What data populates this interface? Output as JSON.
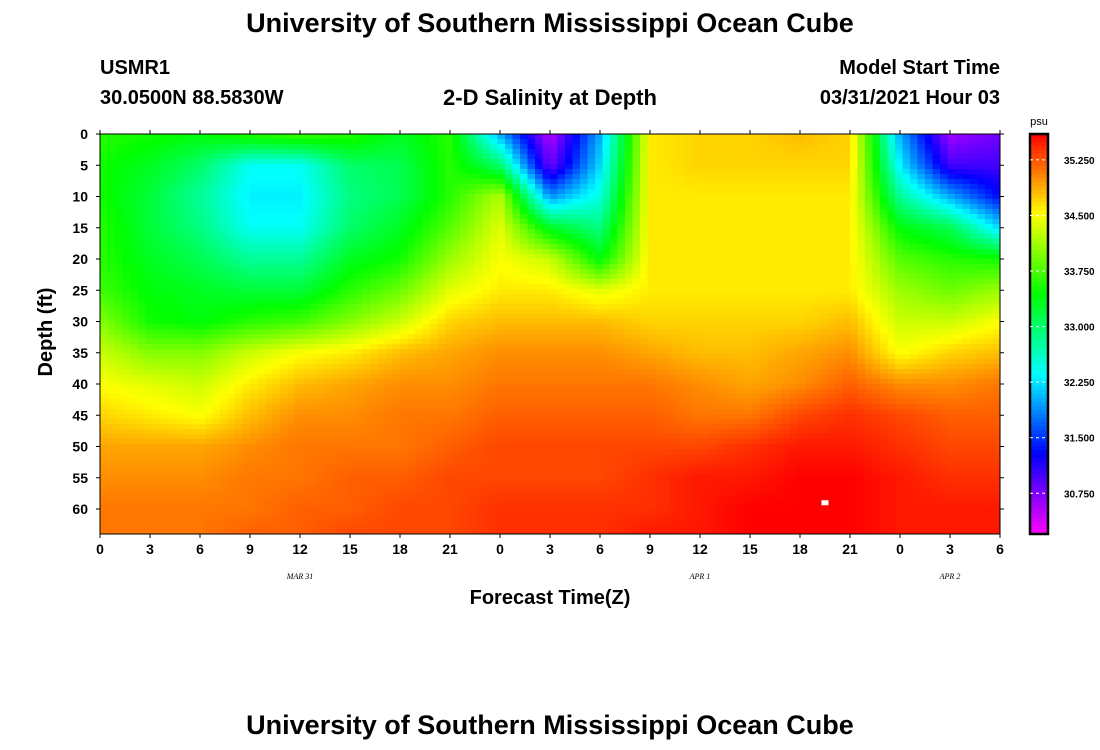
{
  "header": {
    "title_top": "University of Southern Mississippi Ocean Cube",
    "title_bottom": "University of Southern Mississippi Ocean Cube",
    "station_id": "USMR1",
    "station_coords": "30.0500N  88.5830W",
    "subtitle": "2-D Salinity at Depth",
    "model_start_label": "Model Start Time",
    "model_start_value": "03/31/2021 Hour 03"
  },
  "chart_data": {
    "type": "heatmap",
    "title": "2-D Salinity at Depth",
    "xlabel": "Forecast Time(Z)",
    "ylabel": "Depth (ft)",
    "x_range_hours": [
      0,
      54
    ],
    "y_range_ft": [
      0,
      64
    ],
    "x_ticks": [
      {
        "hour": 0,
        "label": "0"
      },
      {
        "hour": 3,
        "label": "3"
      },
      {
        "hour": 6,
        "label": "6"
      },
      {
        "hour": 9,
        "label": "9"
      },
      {
        "hour": 12,
        "label": "12"
      },
      {
        "hour": 15,
        "label": "15"
      },
      {
        "hour": 18,
        "label": "18"
      },
      {
        "hour": 21,
        "label": "21"
      },
      {
        "hour": 24,
        "label": "0"
      },
      {
        "hour": 27,
        "label": "3"
      },
      {
        "hour": 30,
        "label": "6"
      },
      {
        "hour": 33,
        "label": "9"
      },
      {
        "hour": 36,
        "label": "12"
      },
      {
        "hour": 39,
        "label": "15"
      },
      {
        "hour": 42,
        "label": "18"
      },
      {
        "hour": 45,
        "label": "21"
      },
      {
        "hour": 48,
        "label": "0"
      },
      {
        "hour": 51,
        "label": "3"
      },
      {
        "hour": 54,
        "label": "6"
      }
    ],
    "date_labels": [
      {
        "hour": 12,
        "label": "MAR 31"
      },
      {
        "hour": 36,
        "label": "APR 1"
      },
      {
        "hour": 51,
        "label": "APR 2"
      }
    ],
    "y_ticks": [
      0,
      5,
      10,
      15,
      20,
      25,
      30,
      35,
      40,
      45,
      50,
      55,
      60
    ],
    "colorbar": {
      "unit": "psu",
      "min": 30.2,
      "max": 35.6,
      "ticks": [
        "35.250",
        "34.500",
        "33.750",
        "33.000",
        "32.250",
        "31.500",
        "30.750"
      ],
      "tick_values": [
        35.25,
        34.5,
        33.75,
        33.0,
        32.25,
        31.5,
        30.75
      ]
    },
    "time_hours": [
      0,
      3,
      6,
      9,
      12,
      15,
      18,
      21,
      24,
      27,
      30,
      33,
      36,
      39,
      42,
      45,
      48,
      51,
      54
    ],
    "depths_ft": [
      0,
      5,
      10,
      15,
      20,
      25,
      30,
      35,
      40,
      45,
      50,
      55,
      60,
      64
    ],
    "salinity_psu": [
      [
        33.6,
        33.5,
        33.4,
        33.6,
        33.7,
        33.6,
        33.3,
        33.6,
        32.0,
        30.5,
        32.0,
        34.6,
        34.7,
        34.7,
        34.8,
        34.7,
        32.0,
        30.6,
        30.8
      ],
      [
        33.5,
        33.3,
        33.0,
        32.4,
        32.4,
        33.0,
        33.1,
        33.6,
        33.0,
        30.8,
        32.2,
        34.6,
        34.7,
        34.7,
        34.7,
        34.7,
        32.3,
        31.0,
        31.0
      ],
      [
        33.5,
        33.2,
        32.8,
        32.3,
        32.3,
        32.9,
        33.1,
        33.6,
        34.2,
        31.9,
        32.5,
        34.6,
        34.6,
        34.6,
        34.6,
        34.6,
        32.8,
        32.0,
        31.3
      ],
      [
        33.6,
        33.2,
        32.9,
        32.4,
        32.4,
        33.0,
        33.3,
        33.8,
        34.4,
        33.3,
        32.9,
        34.6,
        34.6,
        34.6,
        34.6,
        34.6,
        33.4,
        33.1,
        32.2
      ],
      [
        33.6,
        33.3,
        33.1,
        32.8,
        32.8,
        33.3,
        33.5,
        34.1,
        34.5,
        34.3,
        33.4,
        34.6,
        34.6,
        34.6,
        34.6,
        34.6,
        33.8,
        33.6,
        33.5
      ],
      [
        33.7,
        33.4,
        33.3,
        33.2,
        33.2,
        33.6,
        33.9,
        34.4,
        34.6,
        34.6,
        34.4,
        34.6,
        34.6,
        34.6,
        34.6,
        34.6,
        34.1,
        33.9,
        34.1
      ],
      [
        34.0,
        33.5,
        33.4,
        33.6,
        33.7,
        34.0,
        34.3,
        34.7,
        34.8,
        34.8,
        34.8,
        34.7,
        34.7,
        34.7,
        34.7,
        34.8,
        34.3,
        34.3,
        34.5
      ],
      [
        34.3,
        34.0,
        34.0,
        34.3,
        34.5,
        34.6,
        34.8,
        34.9,
        35.0,
        35.0,
        35.0,
        34.9,
        34.8,
        34.8,
        34.9,
        35.0,
        34.5,
        34.7,
        34.8
      ],
      [
        34.5,
        34.4,
        34.3,
        34.6,
        34.8,
        34.9,
        35.0,
        35.0,
        35.1,
        35.1,
        35.1,
        35.1,
        35.0,
        34.9,
        35.0,
        35.2,
        35.0,
        35.0,
        35.1
      ],
      [
        34.7,
        34.6,
        34.5,
        34.8,
        35.0,
        35.0,
        35.1,
        35.1,
        35.2,
        35.2,
        35.2,
        35.2,
        35.1,
        35.1,
        35.3,
        35.4,
        35.3,
        35.2,
        35.2
      ],
      [
        34.9,
        34.9,
        34.9,
        35.0,
        35.1,
        35.1,
        35.1,
        35.2,
        35.3,
        35.3,
        35.3,
        35.3,
        35.3,
        35.4,
        35.5,
        35.5,
        35.4,
        35.3,
        35.3
      ],
      [
        35.0,
        35.0,
        35.0,
        35.1,
        35.1,
        35.2,
        35.2,
        35.3,
        35.3,
        35.3,
        35.3,
        35.4,
        35.5,
        35.5,
        35.6,
        35.6,
        35.5,
        35.4,
        35.4
      ],
      [
        35.1,
        35.1,
        35.1,
        35.1,
        35.2,
        35.2,
        35.3,
        35.3,
        35.4,
        35.4,
        35.4,
        35.4,
        35.5,
        35.6,
        35.6,
        35.6,
        35.5,
        35.5,
        35.5
      ],
      [
        35.1,
        35.1,
        35.1,
        35.2,
        35.2,
        35.3,
        35.3,
        35.3,
        35.4,
        35.4,
        35.4,
        35.5,
        35.5,
        35.6,
        35.6,
        35.6,
        35.5,
        35.5,
        35.5
      ]
    ],
    "marker_point": {
      "hour": 43.5,
      "depth_ft": 59,
      "color": "#ffffff"
    },
    "colors": {
      "frame": "#000000"
    }
  }
}
